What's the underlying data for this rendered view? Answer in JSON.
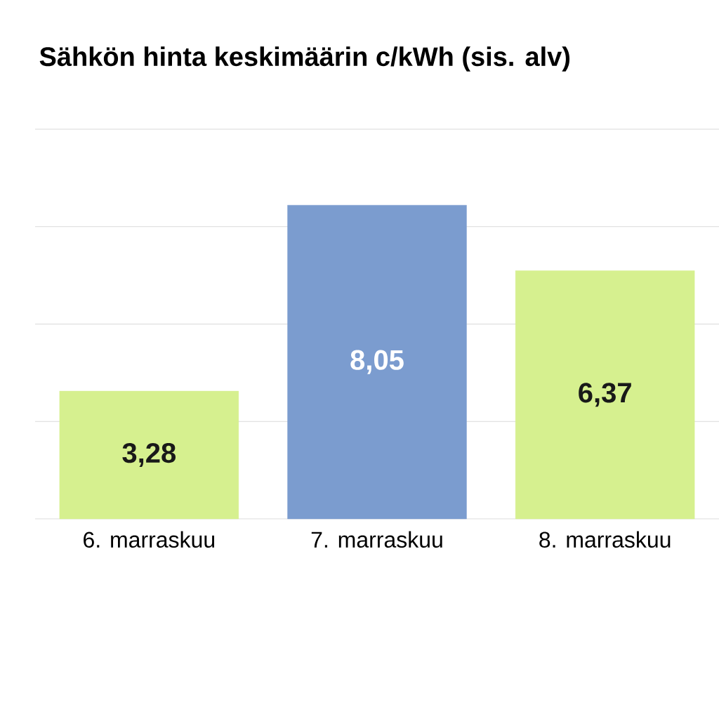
{
  "chart_data": {
    "type": "bar",
    "title": "Sähkön hinta keskimäärin c/kWh (sis. alv)",
    "categories": [
      "6. marraskuu",
      "7. marraskuu",
      "8. marraskuu"
    ],
    "values": [
      3.28,
      8.05,
      6.37
    ],
    "value_labels": [
      "3,28",
      "8,05",
      "6,37"
    ],
    "colors": [
      "#d6f08f",
      "#7b9ccf",
      "#d6f08f"
    ],
    "ylim": [
      0,
      10
    ],
    "yticks": [
      {
        "value": 0,
        "label": null
      },
      {
        "value": 2.5,
        "label": null
      },
      {
        "value": 5,
        "label": null
      },
      {
        "value": 7.5,
        "label": null
      },
      {
        "value": 10,
        "label": null
      }
    ],
    "tick_labels": "x",
    "grid": "y"
  }
}
